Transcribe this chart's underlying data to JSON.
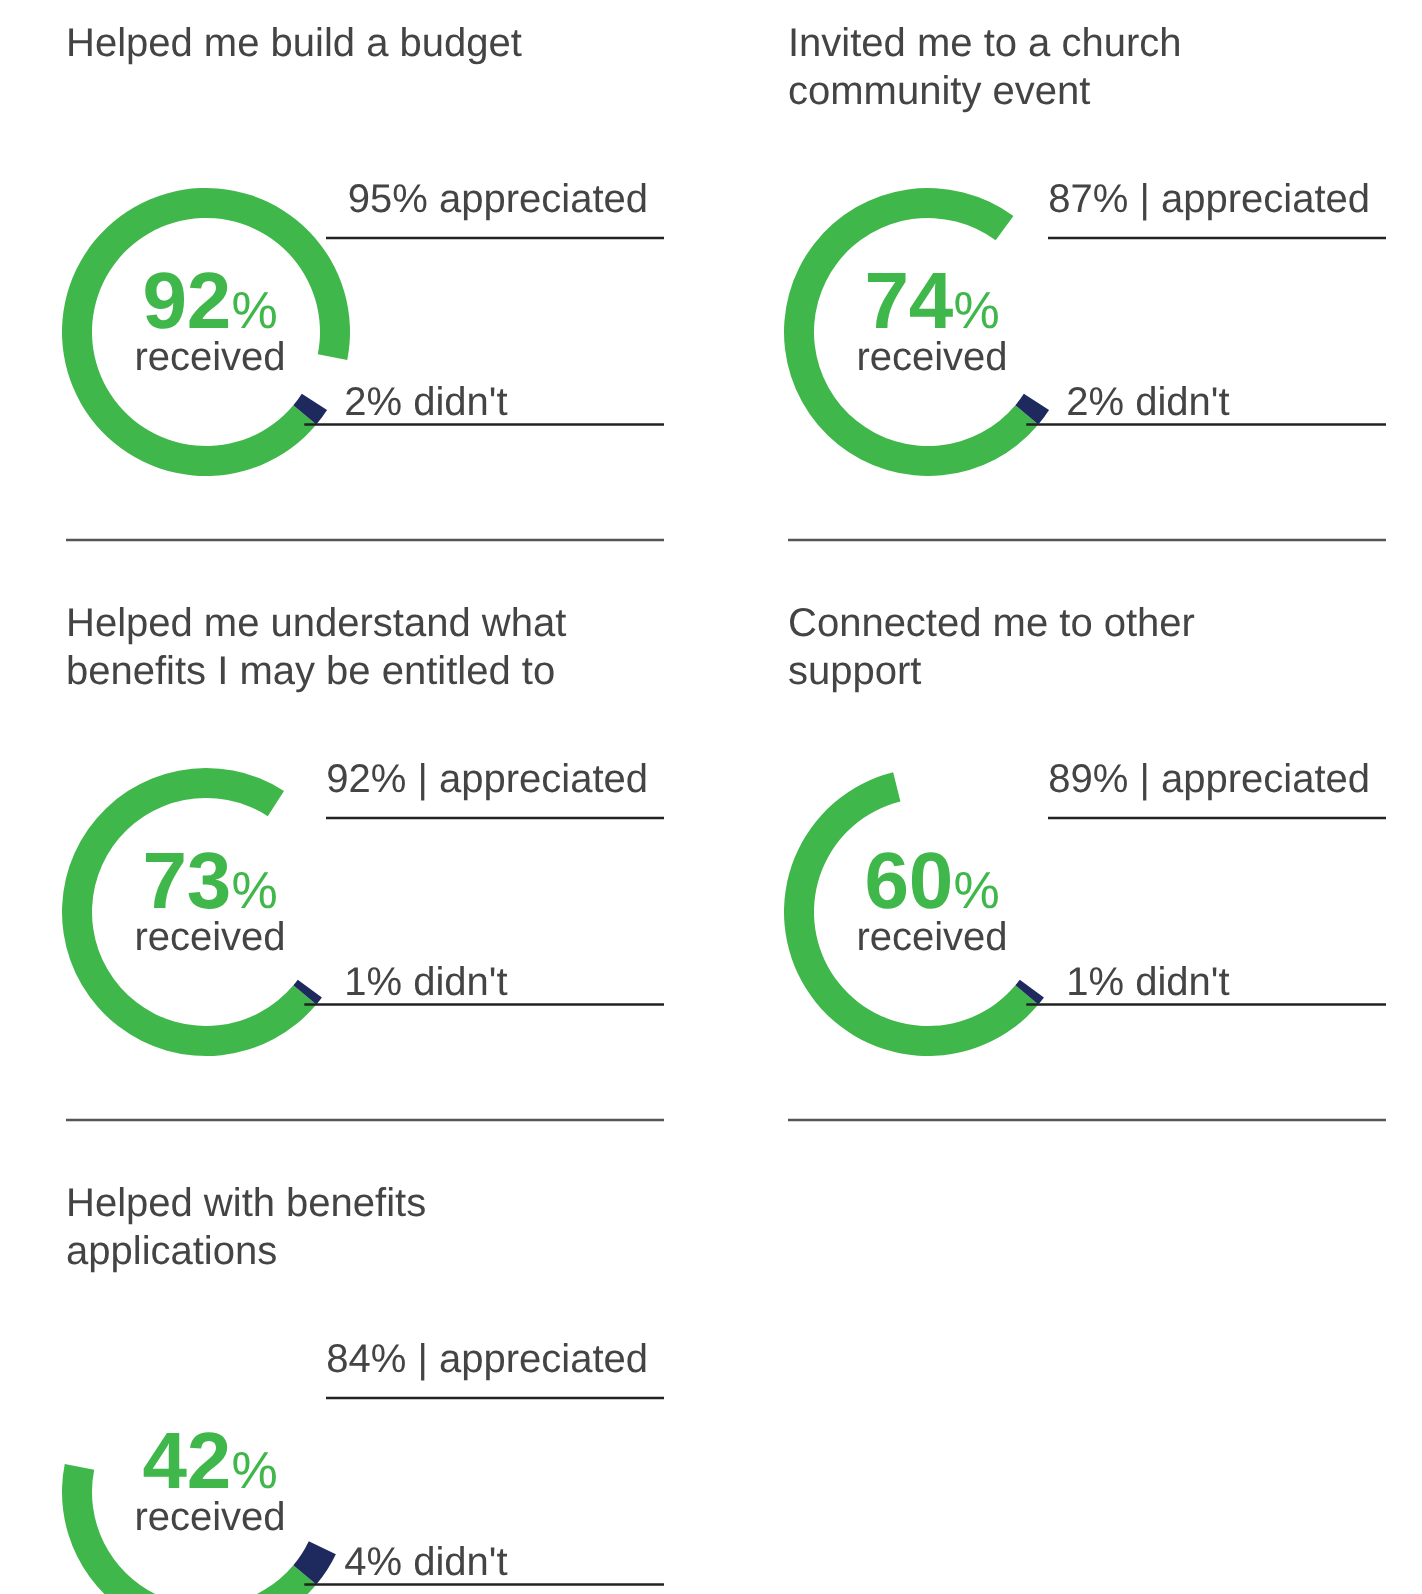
{
  "chart_data": [
    {
      "type": "donut",
      "title": "Helped me build a budget",
      "categories": [
        "received",
        "didn't"
      ],
      "values": [
        92,
        2
      ],
      "value_labels": [
        "92%",
        "2%"
      ],
      "colors": [
        "#40b74b",
        "#1e2a5e"
      ],
      "annotations": [
        "95% appreciated"
      ],
      "legend": false
    },
    {
      "type": "donut",
      "title": "Invited me to a church community event",
      "categories": [
        "received",
        "didn't"
      ],
      "values": [
        74,
        2
      ],
      "value_labels": [
        "74%",
        "2%"
      ],
      "colors": [
        "#40b74b",
        "#1e2a5e"
      ],
      "annotations": [
        "87% | appreciated"
      ],
      "legend": false
    },
    {
      "type": "donut",
      "title": "Helped me understand what benefits I may be entitled to",
      "categories": [
        "received",
        "didn't"
      ],
      "values": [
        73,
        1
      ],
      "value_labels": [
        "73%",
        "1%"
      ],
      "colors": [
        "#40b74b",
        "#1e2a5e"
      ],
      "annotations": [
        "92% | appreciated"
      ],
      "legend": false
    },
    {
      "type": "donut",
      "title": "Connected me to other support",
      "categories": [
        "received",
        "didn't"
      ],
      "values": [
        60,
        1
      ],
      "value_labels": [
        "60%",
        "1%"
      ],
      "colors": [
        "#40b74b",
        "#1e2a5e"
      ],
      "annotations": [
        "89% | appreciated"
      ],
      "legend": false
    },
    {
      "type": "donut",
      "title": "Helped with benefits applications",
      "categories": [
        "received",
        "didn't"
      ],
      "values": [
        42,
        4
      ],
      "value_labels": [
        "42%",
        "4%"
      ],
      "colors": [
        "#40b74b",
        "#1e2a5e"
      ],
      "annotations": [
        "84% | appreciated"
      ],
      "legend": false
    }
  ]
}
